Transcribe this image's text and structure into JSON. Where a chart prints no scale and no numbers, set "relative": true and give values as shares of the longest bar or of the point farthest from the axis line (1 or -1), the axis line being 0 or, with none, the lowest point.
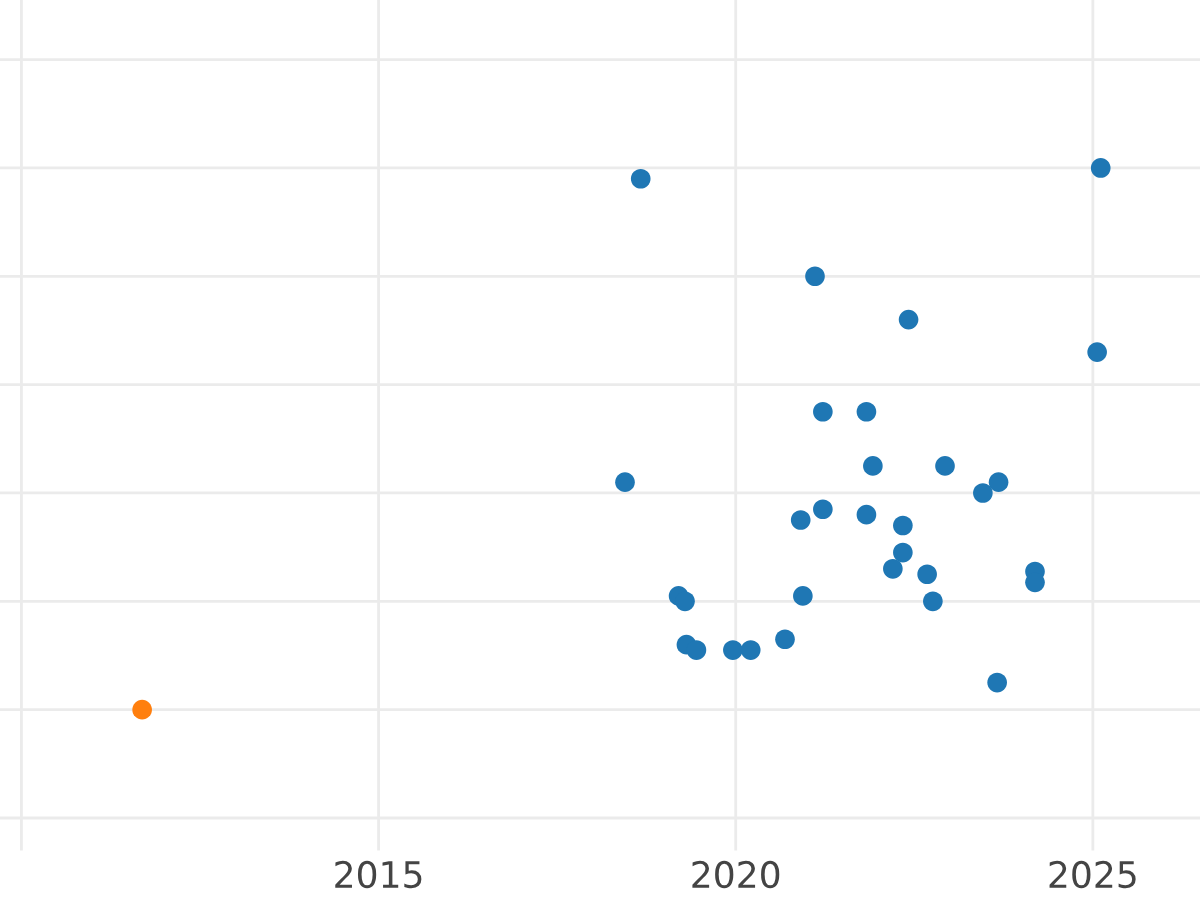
{
  "chart_data": {
    "type": "scatter",
    "relative": true,
    "x": [
      2018.67,
      2025.11,
      2021.11,
      2022.42,
      2025.06,
      2021.22,
      2021.83,
      2018.45,
      2021.92,
      2022.93,
      2023.68,
      2023.46,
      2020.91,
      2021.22,
      2021.83,
      2022.34,
      2022.34,
      2022.2,
      2022.68,
      2024.19,
      2024.19,
      2019.2,
      2019.29,
      2020.94,
      2022.76,
      2019.31,
      2019.45,
      2019.96,
      2020.21,
      2020.69,
      2023.66,
      2011.69
    ],
    "values": [
      0.98,
      1,
      0.8,
      0.72,
      0.66,
      0.55,
      0.55,
      0.42,
      0.45,
      0.45,
      0.42,
      0.4,
      0.35,
      0.37,
      0.36,
      0.34,
      0.29,
      0.26,
      0.25,
      0.255,
      0.235,
      0.21,
      0.2,
      0.21,
      0.2,
      0.12,
      0.11,
      0.11,
      0.11,
      0.13,
      0.05,
      0
    ],
    "colors": [
      "#1f77b4",
      "#1f77b4",
      "#1f77b4",
      "#1f77b4",
      "#1f77b4",
      "#1f77b4",
      "#1f77b4",
      "#1f77b4",
      "#1f77b4",
      "#1f77b4",
      "#1f77b4",
      "#1f77b4",
      "#1f77b4",
      "#1f77b4",
      "#1f77b4",
      "#1f77b4",
      "#1f77b4",
      "#1f77b4",
      "#1f77b4",
      "#1f77b4",
      "#1f77b4",
      "#1f77b4",
      "#1f77b4",
      "#1f77b4",
      "#1f77b4",
      "#1f77b4",
      "#1f77b4",
      "#1f77b4",
      "#1f77b4",
      "#1f77b4",
      "#1f77b4",
      "#ff7f0e"
    ],
    "xlim": [
      2009.7,
      2026.5
    ],
    "xticks": [
      {
        "value": 2010,
        "label": null
      },
      2015,
      2020,
      2025
    ],
    "grid": true,
    "tick_labels": "x",
    "marker": "circle"
  }
}
